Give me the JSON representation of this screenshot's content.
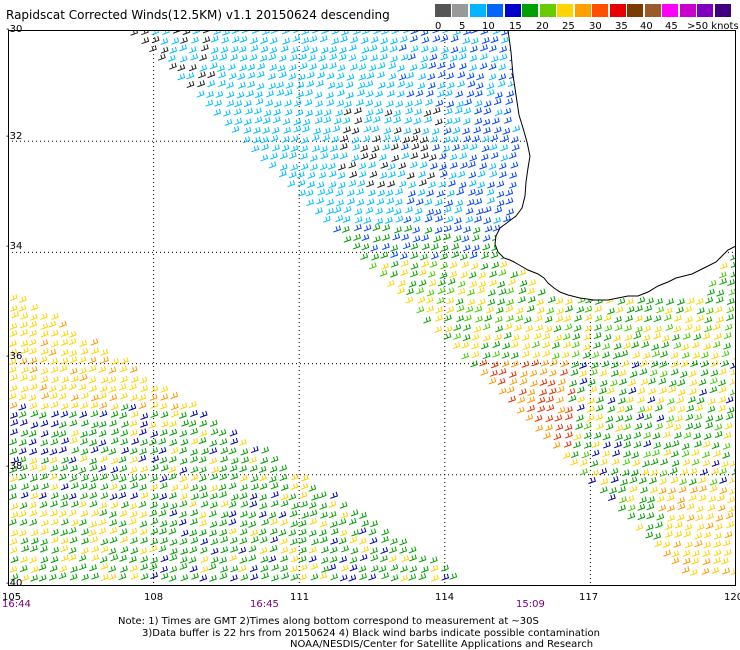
{
  "title": "Rapidscat Corrected Winds(12.5KM) v1.1 20150624 descending",
  "legend": {
    "labels": [
      "0",
      "5",
      "10",
      "15",
      "20",
      "25",
      "30",
      "35",
      "40",
      "45",
      ">50 knots"
    ],
    "colors": [
      "#555555",
      "#999999",
      "#00b4ff",
      "#0066ff",
      "#0000cc",
      "#00a000",
      "#66cc00",
      "#ffd400",
      "#ffa000",
      "#ff5000",
      "#e80000",
      "#7a3c00",
      "#9a5a2a",
      "#ff00ff",
      "#cc00cc",
      "#8000c0",
      "#400080"
    ]
  },
  "map": {
    "lat_labels": [
      "-30",
      "-32",
      "-34",
      "-36",
      "-38",
      "-40"
    ],
    "lon_labels": [
      "105",
      "108",
      "111",
      "114",
      "117",
      "120"
    ],
    "time_labels": [
      "16:44",
      "16:45",
      "15:09"
    ],
    "lat_range": [
      -40,
      -30
    ],
    "lon_range": [
      105,
      120
    ],
    "grid": true
  },
  "notes": {
    "line1": "Note: 1) Times are GMT 2)Times along bottom correspond to measurement at ~30S",
    "line2": "3)Data buffer is 22 hrs from 20150624 4) Black wind barbs indicate possible contamination",
    "line3": "NOAA/NESDIS/Center for Satellite Applications and Research"
  }
}
